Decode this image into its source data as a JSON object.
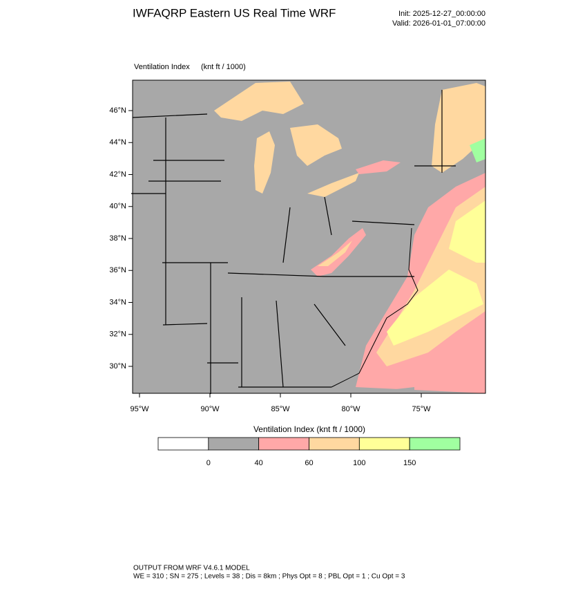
{
  "header": {
    "title": "IWFAQRP Eastern US Real Time WRF",
    "init": "Init: 2025-12-27_00:00:00",
    "valid": "Valid: 2026-01-01_07:00:00"
  },
  "map": {
    "label": "Ventilation Index",
    "units": "(knt ft / 1000)",
    "lat_labels": [
      "46°N",
      "44°N",
      "42°N",
      "40°N",
      "38°N",
      "36°N",
      "34°N",
      "32°N",
      "30°N"
    ],
    "lon_labels": [
      "95°W",
      "90°W",
      "85°W",
      "80°W",
      "75°W"
    ]
  },
  "colorbar": {
    "title": "Ventilation Index  (knt ft / 1000)",
    "colors": [
      "#ffffff",
      "#a8a8a8",
      "#ffa8a8",
      "#ffd8a0",
      "#ffff98",
      "#a0ffa0"
    ],
    "ticks": [
      0,
      40,
      60,
      100,
      150
    ]
  },
  "footer": {
    "line1": "OUTPUT FROM WRF V4.6.1 MODEL",
    "line2": "WE = 310 ; SN = 275 ; Levels = 38 ; Dis = 8km ; Phys Opt = 8 ; PBL Opt = 1 ; Cu Opt = 3"
  }
}
